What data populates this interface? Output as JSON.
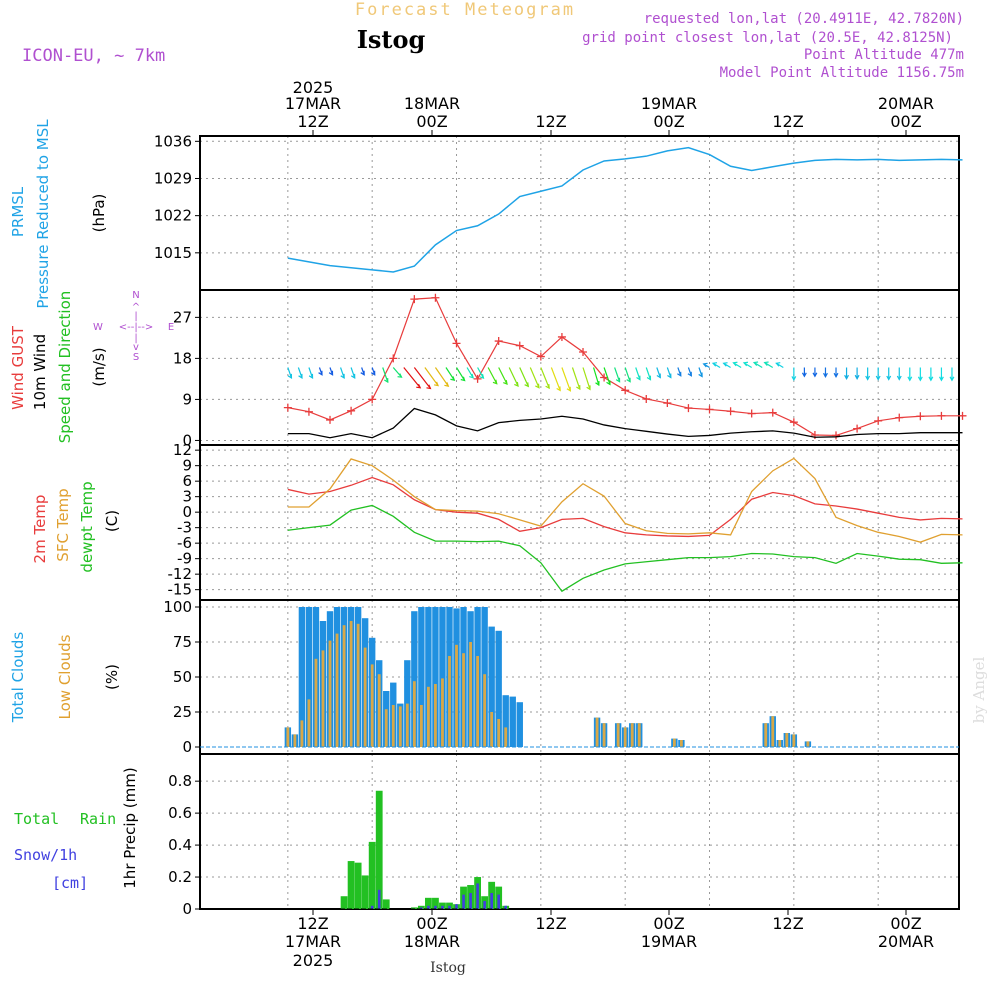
{
  "header": {
    "banner": "Forecast Meteogram",
    "station": "Istog",
    "model": "ICON-EU, ~ 7km",
    "requested": "requested lon,lat (20.4911E, 42.7820N)",
    "gridpoint": "grid point closest lon,lat (20.5E, 42.8125N)",
    "point_alt": "Point Altitude 477m",
    "model_alt": "Model Point Altitude 1156.75m",
    "footer_station": "Istog",
    "watermark": "by Angel"
  },
  "time_axis": {
    "top_labels": [
      {
        "line1": "2025",
        "line2": "17MAR",
        "line3": "12Z"
      },
      {
        "line1": "",
        "line2": "18MAR",
        "line3": "00Z"
      },
      {
        "line1": "",
        "line2": "",
        "line3": "12Z"
      },
      {
        "line1": "",
        "line2": "19MAR",
        "line3": "00Z"
      },
      {
        "line1": "",
        "line2": "",
        "line3": "12Z"
      },
      {
        "line1": "",
        "line2": "20MAR",
        "line3": "00Z"
      }
    ],
    "bottom_labels": [
      {
        "line1": "12Z",
        "line2": "17MAR",
        "line3": "2025"
      },
      {
        "line1": "00Z",
        "line2": "18MAR",
        "line3": ""
      },
      {
        "line1": "12Z",
        "line2": "",
        "line3": ""
      },
      {
        "line1": "00Z",
        "line2": "19MAR",
        "line3": ""
      },
      {
        "line1": "12Z",
        "line2": "",
        "line3": ""
      },
      {
        "line1": "00Z",
        "line2": "20MAR",
        "line3": ""
      }
    ]
  },
  "panels": {
    "pressure": {
      "label1": "PRMSL",
      "label2": "Pressure Reduced to MSL",
      "unit": "(hPa)"
    },
    "wind": {
      "label1": "Wind GUST",
      "label2": "10m Wind",
      "label3": "Speed and Direction",
      "unit": "(m/s)",
      "compass": {
        "n": "N",
        "s": "S",
        "w": "W",
        "e": "E"
      }
    },
    "temp": {
      "label1": "2m Temp",
      "label2": "SFC Temp",
      "label3": "dewpt Temp",
      "unit": "(C)"
    },
    "clouds": {
      "label1": "Total Clouds",
      "label2": "Low Clouds",
      "unit": "(%)"
    },
    "precip": {
      "label1": "Total",
      "label1b": "Rain",
      "label2": "Snow/1h",
      "label3": "[cm]",
      "unit": "1hr Precip (mm)"
    }
  },
  "colors": {
    "pressure": "#1fa3e6",
    "gust": "#e83c3c",
    "wind": "#000000",
    "t2m": "#e83c3c",
    "tsfc": "#e0a030",
    "dewpt": "#22c022",
    "total_cloud": "#2090e0",
    "low_cloud": "#d8a848",
    "rain": "#22c022",
    "snow": "#4040e0",
    "header_purple": "#b050d0",
    "banner": "#f0c878"
  },
  "chart_data": [
    {
      "type": "line",
      "title": "PRMSL",
      "ylabel": "(hPa)",
      "ylim": [
        1008,
        1037
      ],
      "yticks": [
        1015,
        1022,
        1029,
        1036
      ],
      "x": [
        0,
        3,
        6,
        9,
        12,
        15,
        18,
        21,
        24,
        27,
        30,
        33,
        36,
        39,
        42,
        45,
        48,
        51,
        54,
        57,
        60,
        63,
        66,
        69,
        72,
        75,
        78,
        81,
        84,
        87,
        90,
        93,
        96
      ],
      "series": [
        {
          "name": "PRMSL",
          "values": [
            1014,
            1013.3,
            1012.6,
            1012.2,
            1011.8,
            1011.4,
            1012.5,
            1016.5,
            1019.2,
            1020.1,
            1022.3,
            1025.6,
            1026.6,
            1027.6,
            1030.6,
            1032.3,
            1032.7,
            1033.2,
            1034.2,
            1034.8,
            1033.5,
            1031.3,
            1030.5,
            1031.2,
            1031.9,
            1032.4,
            1032.6,
            1032.5,
            1032.6,
            1032.4,
            1032.5,
            1032.6,
            1032.5
          ]
        }
      ]
    },
    {
      "type": "line",
      "title": "Wind",
      "ylabel": "(m/s)",
      "ylim": [
        -1,
        33
      ],
      "yticks": [
        0,
        9,
        18,
        27
      ],
      "x": [
        0,
        3,
        6,
        9,
        12,
        15,
        18,
        21,
        24,
        27,
        30,
        33,
        36,
        39,
        42,
        45,
        48,
        51,
        54,
        57,
        60,
        63,
        66,
        69,
        72,
        75,
        78,
        81,
        84,
        87,
        90,
        93,
        96
      ],
      "series": [
        {
          "name": "Wind GUST",
          "values": [
            7.2,
            6.3,
            4.5,
            6.5,
            9.0,
            18.0,
            31.0,
            31.3,
            21.3,
            13.5,
            21.8,
            20.8,
            18.4,
            22.7,
            19.4,
            13.8,
            11.0,
            9.1,
            8.2,
            7.1,
            6.8,
            6.4,
            5.9,
            6.1,
            4.0,
            1.2,
            1.1,
            2.6,
            4.3,
            5.0,
            5.3,
            5.4,
            5.4
          ]
        },
        {
          "name": "10m Wind",
          "values": [
            1.5,
            1.5,
            0.6,
            1.5,
            0.6,
            2.7,
            7.0,
            5.6,
            3.2,
            2.1,
            3.9,
            4.4,
            4.7,
            5.3,
            4.7,
            3.4,
            2.6,
            2.0,
            1.4,
            0.9,
            1.1,
            1.6,
            1.9,
            2.1,
            1.6,
            0.7,
            0.8,
            1.3,
            1.5,
            1.5,
            1.7,
            1.7,
            1.7
          ]
        }
      ]
    },
    {
      "type": "line",
      "title": "Temperature",
      "ylabel": "(C)",
      "ylim": [
        -17,
        13
      ],
      "yticks": [
        -15,
        -12,
        -9,
        -6,
        -3,
        0,
        3,
        6,
        9,
        12
      ],
      "x": [
        0,
        3,
        6,
        9,
        12,
        15,
        18,
        21,
        24,
        27,
        30,
        33,
        36,
        39,
        42,
        45,
        48,
        51,
        54,
        57,
        60,
        63,
        66,
        69,
        72,
        75,
        78,
        81,
        84,
        87,
        90,
        93,
        96
      ],
      "series": [
        {
          "name": "2m Temp",
          "values": [
            4.4,
            3.5,
            4.0,
            5.2,
            6.7,
            5.3,
            2.4,
            0.5,
            0,
            -0.2,
            -1.4,
            -3.7,
            -3.0,
            -1.4,
            -1.2,
            -2.8,
            -4.0,
            -4.4,
            -4.6,
            -4.7,
            -4.5,
            -1.4,
            2.5,
            3.8,
            3.2,
            1.6,
            1.2,
            0.6,
            -0.2,
            -1.0,
            -1.5,
            -1.2,
            -1.3
          ]
        },
        {
          "name": "SFC Temp",
          "values": [
            1.0,
            1.0,
            4.5,
            10.3,
            9.0,
            6.2,
            3.0,
            0.5,
            0.3,
            0.2,
            -0.3,
            -1.5,
            -2.7,
            2.0,
            5.5,
            3.1,
            -2.2,
            -3.6,
            -4.1,
            -4.2,
            -4.0,
            -4.4,
            4.0,
            8.0,
            10.4,
            6.5,
            -1.0,
            -2.6,
            -3.9,
            -4.7,
            -5.8,
            -4.3,
            -4.4
          ]
        },
        {
          "name": "dewpt Temp",
          "values": [
            -3.5,
            -3.0,
            -2.5,
            0.4,
            1.3,
            -0.8,
            -3.9,
            -5.6,
            -5.6,
            -5.7,
            -5.6,
            -6.5,
            -9.8,
            -15.3,
            -12.8,
            -11.2,
            -10.0,
            -9.6,
            -9.2,
            -8.8,
            -8.8,
            -8.6,
            -8.0,
            -8.1,
            -8.6,
            -8.8,
            -9.9,
            -8.0,
            -8.5,
            -9.1,
            -9.2,
            -9.9,
            -9.8
          ]
        }
      ]
    },
    {
      "type": "bar",
      "title": "Clouds",
      "ylabel": "(%)",
      "ylim": [
        -5,
        105
      ],
      "yticks": [
        0,
        25,
        50,
        75,
        100
      ],
      "x": [
        0,
        1,
        2,
        3,
        4,
        5,
        6,
        7,
        8,
        9,
        10,
        11,
        12,
        13,
        14,
        15,
        16,
        17,
        18,
        19,
        20,
        21,
        22,
        23,
        24,
        25,
        26,
        27,
        28,
        29,
        30,
        31,
        32,
        33,
        34,
        35,
        36,
        37,
        38,
        39,
        40,
        41,
        42,
        43,
        44,
        45,
        46,
        47,
        48,
        49,
        50,
        51,
        52,
        53,
        54,
        55,
        56,
        57,
        58,
        59,
        60,
        61,
        62,
        63,
        64,
        65,
        66,
        67,
        68,
        69,
        70,
        71,
        72,
        73,
        74,
        75,
        76,
        77,
        78,
        79,
        80,
        81,
        82,
        83,
        84,
        85,
        86,
        87,
        88,
        89,
        90,
        91,
        92,
        93,
        94,
        95,
        96
      ],
      "series": [
        {
          "name": "Total Clouds",
          "values": [
            14,
            9,
            100,
            100,
            100,
            90,
            97,
            100,
            100,
            100,
            100,
            92,
            78,
            62,
            40,
            46,
            31,
            62,
            97,
            100,
            100,
            100,
            100,
            100,
            99,
            100,
            97,
            100,
            100,
            86,
            83,
            37,
            36,
            32,
            0,
            0,
            0,
            0,
            0,
            0,
            0,
            0,
            0,
            0,
            21,
            17,
            0,
            17,
            14,
            17,
            17,
            0,
            0,
            0,
            0,
            6,
            5,
            0,
            0,
            0,
            0,
            0,
            0,
            0,
            0,
            0,
            0,
            0,
            17,
            22,
            5,
            10,
            9,
            0,
            4,
            0,
            0,
            0,
            0,
            0,
            0,
            0,
            0,
            0,
            0,
            0,
            0,
            0,
            0,
            0,
            0,
            0,
            0,
            0,
            0,
            0,
            0
          ]
        },
        {
          "name": "Low Clouds",
          "values": [
            14,
            9,
            19,
            34,
            63,
            69,
            76,
            81,
            87,
            90,
            88,
            71,
            59,
            52,
            27,
            30,
            29,
            31,
            47,
            30,
            43,
            45,
            49,
            65,
            73,
            67,
            75,
            65,
            52,
            25,
            20,
            14,
            0,
            0,
            0,
            0,
            0,
            0,
            0,
            0,
            0,
            0,
            0,
            0,
            21,
            17,
            0,
            17,
            14,
            17,
            17,
            0,
            0,
            0,
            0,
            6,
            5,
            0,
            0,
            0,
            0,
            0,
            0,
            0,
            0,
            0,
            0,
            0,
            17,
            22,
            5,
            10,
            9,
            0,
            4,
            0,
            0,
            0,
            0,
            0,
            0,
            0,
            0,
            0,
            0,
            0,
            0,
            0,
            0,
            0,
            0,
            0,
            0,
            0,
            0,
            0,
            0
          ]
        }
      ]
    },
    {
      "type": "bar",
      "title": "1hr Precip",
      "ylabel": "1hr Precip (mm)",
      "ylim": [
        0,
        0.97
      ],
      "yticks": [
        0,
        0.2,
        0.4,
        0.6,
        0.8
      ],
      "x": [
        0,
        1,
        2,
        3,
        4,
        5,
        6,
        7,
        8,
        9,
        10,
        11,
        12,
        13,
        14,
        15,
        16,
        17,
        18,
        19,
        20,
        21,
        22,
        23,
        24,
        25,
        26,
        27,
        28,
        29,
        30,
        31,
        32,
        33,
        34,
        35,
        36,
        37,
        38,
        39,
        40,
        41,
        42,
        43,
        44,
        45,
        46,
        47,
        48,
        49,
        50,
        51,
        52,
        53,
        54,
        55,
        56,
        57,
        58,
        59,
        60,
        61,
        62,
        63,
        64,
        65,
        66,
        67,
        68,
        69,
        70,
        71,
        72,
        73,
        74,
        75,
        76,
        77,
        78,
        79,
        80,
        81,
        82,
        83,
        84,
        85,
        86,
        87,
        88,
        89,
        90,
        91,
        92,
        93,
        94,
        95,
        96
      ],
      "series": [
        {
          "name": "Total Rain",
          "values": [
            0,
            0,
            0,
            0,
            0,
            0,
            0,
            0,
            0.08,
            0.3,
            0.29,
            0.21,
            0.42,
            0.74,
            0.06,
            0,
            0,
            0,
            0.01,
            0.02,
            0.07,
            0.07,
            0.04,
            0.04,
            0.03,
            0.14,
            0.15,
            0.2,
            0.08,
            0.17,
            0.14,
            0.02,
            0,
            0,
            0,
            0,
            0,
            0,
            0,
            0,
            0,
            0,
            0,
            0,
            0,
            0,
            0,
            0,
            0,
            0,
            0,
            0,
            0,
            0,
            0,
            0,
            0,
            0,
            0,
            0,
            0,
            0,
            0,
            0,
            0,
            0,
            0,
            0,
            0,
            0,
            0,
            0,
            0,
            0,
            0,
            0,
            0,
            0,
            0,
            0,
            0,
            0,
            0,
            0,
            0,
            0,
            0,
            0,
            0,
            0,
            0,
            0,
            0,
            0,
            0,
            0,
            0
          ]
        },
        {
          "name": "Snow/1h",
          "values": [
            0,
            0,
            0,
            0,
            0,
            0,
            0,
            0,
            0,
            0,
            0,
            0,
            0.02,
            0.12,
            0,
            0,
            0,
            0,
            0,
            0.01,
            0.02,
            0.02,
            0.02,
            0.02,
            0.03,
            0.09,
            0.1,
            0.16,
            0.05,
            0.1,
            0.09,
            0.02,
            0,
            0,
            0,
            0,
            0,
            0,
            0,
            0,
            0,
            0,
            0,
            0,
            0,
            0,
            0,
            0,
            0,
            0,
            0,
            0,
            0,
            0,
            0,
            0,
            0,
            0,
            0,
            0,
            0,
            0,
            0,
            0,
            0,
            0,
            0,
            0,
            0,
            0,
            0,
            0,
            0,
            0,
            0,
            0,
            0,
            0,
            0,
            0,
            0,
            0,
            0,
            0,
            0,
            0,
            0,
            0,
            0,
            0,
            0,
            0,
            0,
            0,
            0,
            0,
            0
          ]
        }
      ]
    }
  ]
}
